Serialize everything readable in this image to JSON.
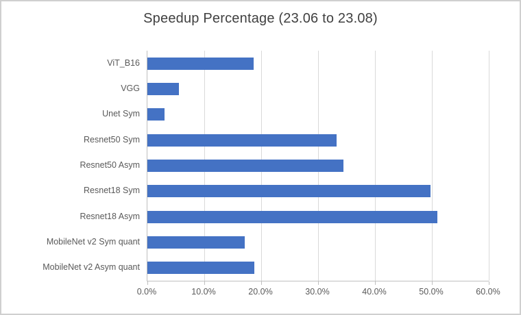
{
  "title": "Speedup Percentage (23.06 to 23.08)",
  "colors": {
    "bar": "#4472C4",
    "gridline": "#D9D9D9",
    "axis": "#BFBFBF",
    "label_text": "#595959",
    "title_text": "#404040",
    "background": "#FFFFFF",
    "frame_border": "#CFCFCF"
  },
  "chart_data": {
    "type": "bar",
    "orientation": "horizontal",
    "title": "Speedup Percentage (23.06 to 23.08)",
    "categories": [
      "ViT_B16",
      "VGG",
      "Unet Sym",
      "Resnet50 Sym",
      "Resnet50 Asym",
      "Resnet18 Sym",
      "Resnet18 Asym",
      "MobileNet v2 Sym quant",
      "MobileNet v2 Asym quant"
    ],
    "values": [
      18.7,
      5.6,
      3.0,
      33.3,
      34.4,
      49.7,
      51.0,
      17.1,
      18.8
    ],
    "value_unit": "percent",
    "xlabel": "",
    "ylabel": "",
    "xlim": [
      0,
      60
    ],
    "x_tick_values": [
      0,
      10,
      20,
      30,
      40,
      50,
      60
    ],
    "x_tick_labels": [
      "0.0%",
      "10.0%",
      "20.0%",
      "30.0%",
      "40.0%",
      "50.0%",
      "60.0%"
    ],
    "grid": "vertical-only",
    "legend_position": "none"
  }
}
